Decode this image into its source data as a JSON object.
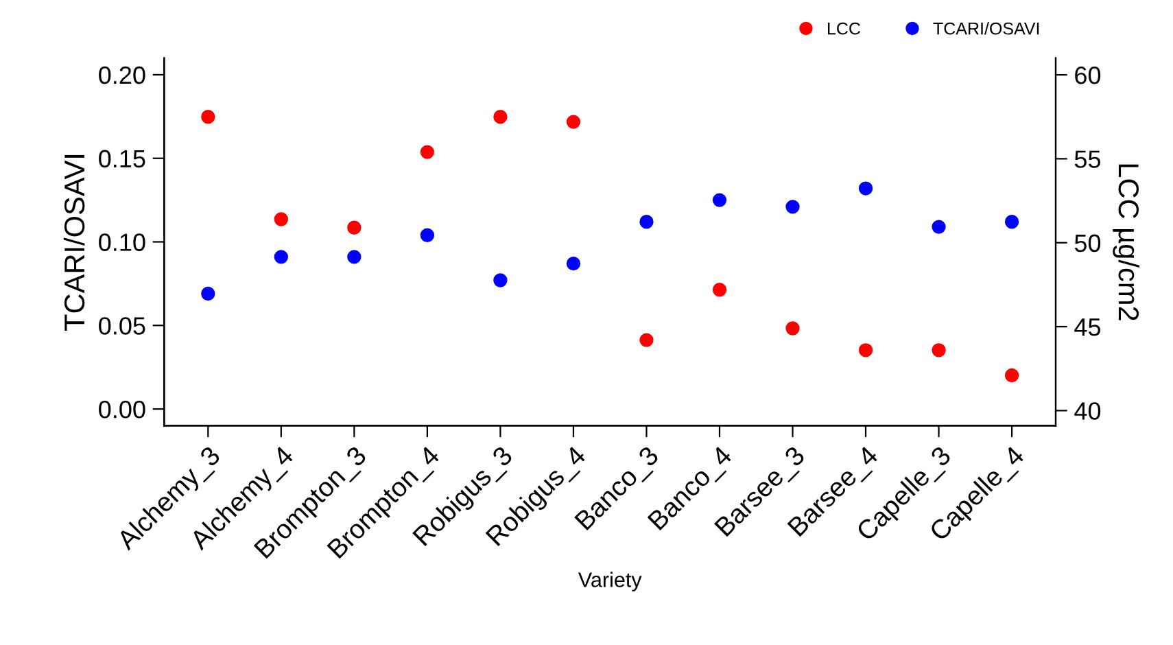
{
  "chart_data": {
    "type": "scatter",
    "xlabel": "Variety",
    "ylabel": "TCARI/OSAVI",
    "y2label": "LCC µg/cm2",
    "categories": [
      "Alchemy_3",
      "Alchemy_4",
      "Brompton_3",
      "Brompton_4",
      "Robigus_3",
      "Robigus_4",
      "Banco_3",
      "Banco_4",
      "Barsee_3",
      "Barsee_4",
      "Capelle_3",
      "Capelle_4"
    ],
    "series": [
      {
        "name": "LCC",
        "color": "#ff0000",
        "axis": "y2",
        "values": [
          57.5,
          51.4,
          50.9,
          55.4,
          57.5,
          57.2,
          44.2,
          47.2,
          44.9,
          43.6,
          43.6,
          42.1
        ]
      },
      {
        "name": "TCARI/OSAVI",
        "color": "#0000ff",
        "values": [
          0.069,
          0.091,
          0.091,
          0.104,
          0.077,
          0.087,
          0.112,
          0.125,
          0.121,
          0.132,
          0.109,
          0.112
        ]
      }
    ],
    "ylim": [
      -0.01,
      0.21
    ],
    "yticks": [
      {
        "value": 0,
        "label": "0.00"
      },
      0.05,
      {
        "value": 0.1,
        "label": "0.10"
      },
      0.15,
      {
        "value": 0.2,
        "label": "0.20"
      }
    ],
    "y2lim": [
      39.1,
      61
    ],
    "y2ticks": [
      40,
      45,
      50,
      55,
      60
    ],
    "marker": "circle",
    "grid": false,
    "legend": "top right"
  }
}
